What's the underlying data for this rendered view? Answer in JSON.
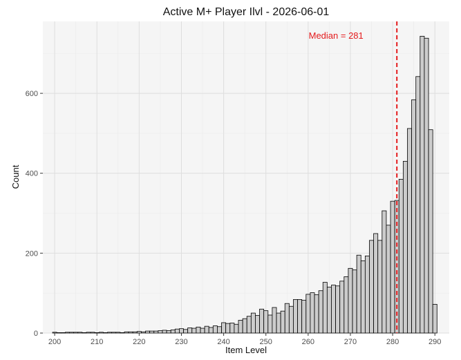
{
  "chart_data": {
    "type": "bar",
    "title": "Active M+ Player Ilvl - 2026-06-01",
    "xlabel": "Item Level",
    "ylabel": "Count",
    "xlim": [
      197.2,
      293.4
    ],
    "ylim": [
      0,
      780
    ],
    "x_ticks": [
      200,
      210,
      220,
      230,
      240,
      250,
      260,
      270,
      280,
      290
    ],
    "y_ticks": [
      0,
      200,
      400,
      600
    ],
    "grid": true,
    "bin_width": 1,
    "bins": [
      [
        200,
        2
      ],
      [
        201,
        1
      ],
      [
        202,
        1
      ],
      [
        203,
        2
      ],
      [
        204,
        2
      ],
      [
        205,
        2
      ],
      [
        206,
        2
      ],
      [
        207,
        1
      ],
      [
        208,
        2
      ],
      [
        209,
        2
      ],
      [
        210,
        1
      ],
      [
        211,
        2
      ],
      [
        212,
        1
      ],
      [
        213,
        2
      ],
      [
        214,
        2
      ],
      [
        215,
        2
      ],
      [
        216,
        1
      ],
      [
        217,
        3
      ],
      [
        218,
        3
      ],
      [
        219,
        3
      ],
      [
        220,
        4
      ],
      [
        221,
        3
      ],
      [
        222,
        5
      ],
      [
        223,
        5
      ],
      [
        224,
        5
      ],
      [
        225,
        6
      ],
      [
        226,
        7
      ],
      [
        227,
        6
      ],
      [
        228,
        8
      ],
      [
        229,
        10
      ],
      [
        230,
        11
      ],
      [
        231,
        9
      ],
      [
        232,
        13
      ],
      [
        233,
        12
      ],
      [
        234,
        15
      ],
      [
        235,
        12
      ],
      [
        236,
        17
      ],
      [
        237,
        14
      ],
      [
        238,
        18
      ],
      [
        239,
        16
      ],
      [
        240,
        26
      ],
      [
        241,
        24
      ],
      [
        242,
        25
      ],
      [
        243,
        22
      ],
      [
        244,
        32
      ],
      [
        245,
        36
      ],
      [
        246,
        42
      ],
      [
        247,
        50
      ],
      [
        248,
        44
      ],
      [
        249,
        60
      ],
      [
        250,
        56
      ],
      [
        251,
        45
      ],
      [
        252,
        64
      ],
      [
        253,
        50
      ],
      [
        254,
        55
      ],
      [
        255,
        74
      ],
      [
        256,
        67
      ],
      [
        257,
        84
      ],
      [
        258,
        84
      ],
      [
        259,
        82
      ],
      [
        260,
        97
      ],
      [
        261,
        101
      ],
      [
        262,
        96
      ],
      [
        263,
        106
      ],
      [
        264,
        127
      ],
      [
        265,
        115
      ],
      [
        266,
        120
      ],
      [
        267,
        118
      ],
      [
        268,
        130
      ],
      [
        269,
        141
      ],
      [
        270,
        162
      ],
      [
        271,
        158
      ],
      [
        272,
        195
      ],
      [
        273,
        181
      ],
      [
        274,
        193
      ],
      [
        275,
        232
      ],
      [
        276,
        249
      ],
      [
        277,
        232
      ],
      [
        278,
        306
      ],
      [
        279,
        270
      ],
      [
        280,
        330
      ],
      [
        281,
        332
      ],
      [
        282,
        385
      ],
      [
        283,
        430
      ],
      [
        284,
        512
      ],
      [
        285,
        584
      ],
      [
        286,
        642
      ],
      [
        287,
        743
      ],
      [
        288,
        738
      ],
      [
        289,
        509
      ],
      [
        290,
        72
      ]
    ],
    "median": 281,
    "median_label": "Median = 281",
    "median_color": "#e41a1c",
    "bar_fill": "#cccccc",
    "bar_outline": "#000000"
  }
}
